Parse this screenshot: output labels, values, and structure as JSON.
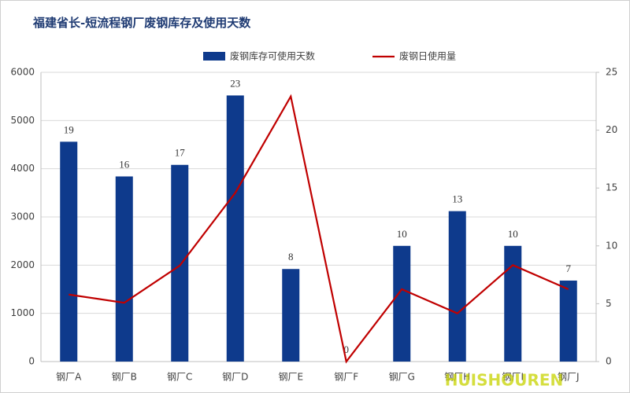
{
  "chart_data": {
    "type": "bar",
    "title": "福建省长-短流程钢厂废钢库存及使用天数",
    "categories": [
      "钢厂A",
      "钢厂B",
      "钢厂C",
      "钢厂D",
      "钢厂E",
      "钢厂F",
      "钢厂G",
      "钢厂H",
      "钢厂I",
      "钢厂J"
    ],
    "series": [
      {
        "name": "废钢库存可使用天数",
        "color": "#0e3a8c",
        "type": "bar",
        "axis": "y2",
        "values": [
          19,
          16,
          17,
          23,
          8,
          0,
          10,
          13,
          10,
          7
        ]
      },
      {
        "name": "废钢日使用量",
        "color": "#c00000",
        "type": "line",
        "values": [
          1390,
          1220,
          1990,
          3500,
          5500,
          0,
          1500,
          1000,
          2000,
          1500
        ]
      }
    ],
    "ylim": [
      0,
      6000
    ],
    "yticks": [
      0,
      1000,
      2000,
      3000,
      4000,
      5000,
      6000
    ],
    "y2lim": [
      0,
      25
    ],
    "y2ticks": [
      0,
      5,
      10,
      15,
      20,
      25
    ],
    "grid": true,
    "legend": "top",
    "watermark": "HUISHOUREN"
  }
}
